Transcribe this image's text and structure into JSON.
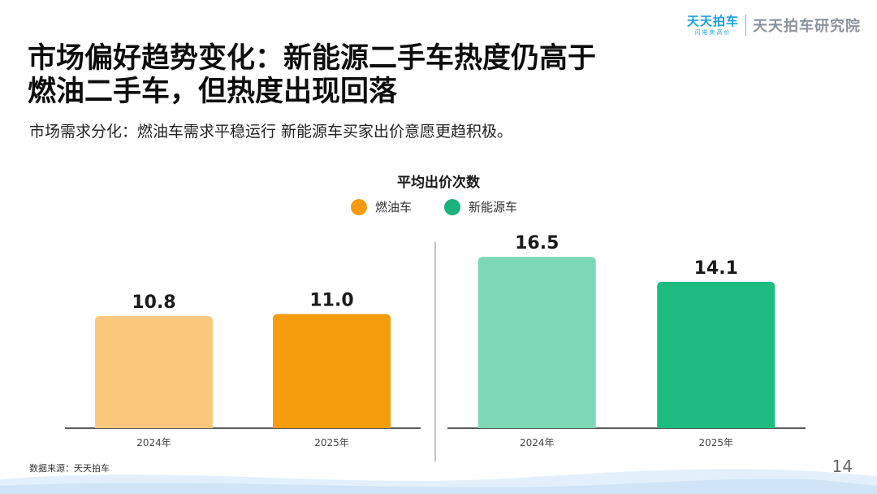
{
  "brand": {
    "logo_main": "天天拍车",
    "logo_sub": "闪电卖高价",
    "org": "天天拍车研究院"
  },
  "header": {
    "title_line1": "市场偏好趋势变化：新能源二手车热度仍高于",
    "title_line2": "燃油二手车，但热度出现回落",
    "subtitle": "市场需求分化：燃油车需求平稳运行 新能源车买家出价意愿更趋积极。"
  },
  "chart_data": {
    "type": "bar",
    "title": "平均出价次数",
    "legend_position": "top-center",
    "grid": false,
    "categories": [
      "2024年",
      "2025年"
    ],
    "ylim": [
      0,
      18
    ],
    "series": [
      {
        "name": "燃油车",
        "values": [
          10.8,
          11.0
        ],
        "labels": [
          "10.8",
          "11.0"
        ],
        "colors": [
          "#fac97d",
          "#f59c0d"
        ],
        "legend_color": "#f39c12"
      },
      {
        "name": "新能源车",
        "values": [
          16.5,
          14.1
        ],
        "labels": [
          "16.5",
          "14.1"
        ],
        "colors": [
          "#7dd8b8",
          "#1dbb80"
        ],
        "legend_color": "#1ab17a"
      }
    ]
  },
  "footer": {
    "source": "数据来源：天天拍车",
    "page": "14"
  }
}
